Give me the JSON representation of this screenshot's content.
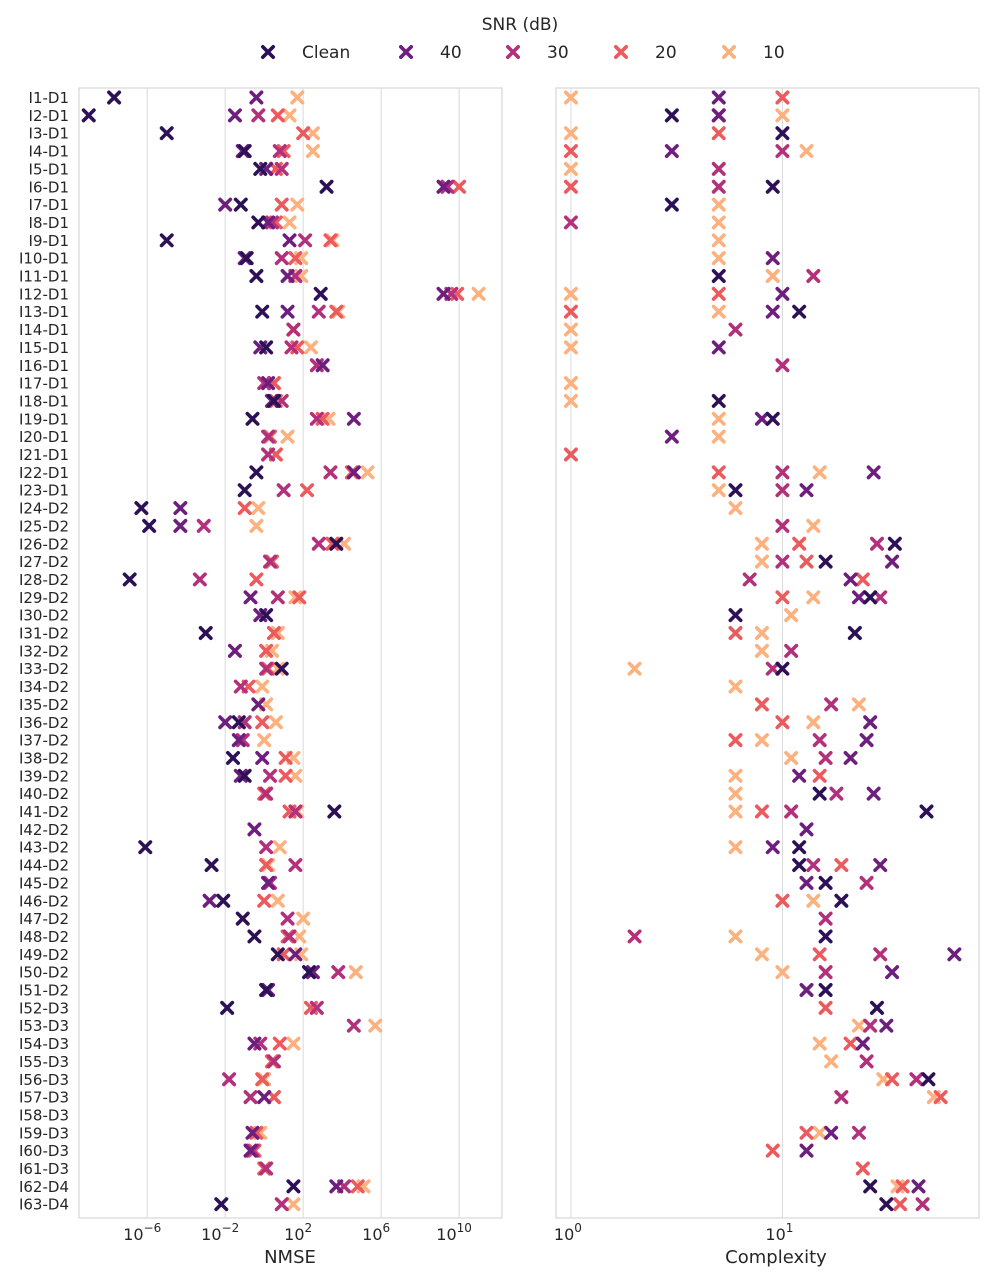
{
  "legend": {
    "title": "SNR (dB)",
    "entries": [
      {
        "label": "Clean",
        "color": "#2c1157"
      },
      {
        "label": "40",
        "color": "#6e1f7e"
      },
      {
        "label": "30",
        "color": "#b3307b"
      },
      {
        "label": "20",
        "color": "#ec5a5e"
      },
      {
        "label": "10",
        "color": "#fcb17e"
      }
    ]
  },
  "chart_data": {
    "type": "scatter",
    "categories": [
      "I1-D1",
      "I2-D1",
      "I3-D1",
      "I4-D1",
      "I5-D1",
      "I6-D1",
      "I7-D1",
      "I8-D1",
      "I9-D1",
      "I10-D1",
      "I11-D1",
      "I12-D1",
      "I13-D1",
      "I14-D1",
      "I15-D1",
      "I16-D1",
      "I17-D1",
      "I18-D1",
      "I19-D1",
      "I20-D1",
      "I21-D1",
      "I22-D1",
      "I23-D1",
      "I24-D2",
      "I25-D2",
      "I26-D2",
      "I27-D2",
      "I28-D2",
      "I29-D2",
      "I30-D2",
      "I31-D2",
      "I32-D2",
      "I33-D2",
      "I34-D2",
      "I35-D2",
      "I36-D2",
      "I37-D2",
      "I38-D2",
      "I39-D2",
      "I40-D2",
      "I41-D2",
      "I42-D2",
      "I43-D2",
      "I44-D2",
      "I45-D2",
      "I46-D2",
      "I47-D2",
      "I48-D2",
      "I49-D2",
      "I50-D2",
      "I51-D2",
      "I52-D3",
      "I53-D3",
      "I54-D3",
      "I55-D3",
      "I56-D3",
      "I57-D3",
      "I58-D3",
      "I59-D3",
      "I60-D3",
      "I61-D3",
      "I62-D4",
      "I63-D4"
    ],
    "series_names": [
      "Clean",
      "40",
      "30",
      "20",
      "10"
    ],
    "panels": [
      {
        "xlabel": "NMSE",
        "xscale": "log10",
        "xlim_exp": [
          -9.5,
          12.2
        ],
        "ticks": [
          {
            "exp": -6,
            "label": "10"
          },
          {
            "exp": -2,
            "label": "10"
          },
          {
            "exp": 2,
            "label": "10"
          },
          {
            "exp": 6,
            "label": "10"
          },
          {
            "exp": 10,
            "label": "10"
          }
        ],
        "tick_exponents": [
          "−6",
          "−2",
          "2",
          "6",
          "10"
        ],
        "log10_values": [
          [
            -7.7,
            -0.4,
            null,
            null,
            1.7
          ],
          [
            -9.0,
            -1.5,
            -0.3,
            0.7,
            1.3
          ],
          [
            -5.0,
            null,
            null,
            2.0,
            2.5
          ],
          [
            -1.0,
            -1.1,
            0.8,
            1.0,
            2.5
          ],
          [
            -0.2,
            0.1,
            0.9,
            0.6,
            0.6
          ],
          [
            3.2,
            9.2,
            9.4,
            10.0,
            null
          ],
          [
            -1.2,
            -2.0,
            null,
            0.9,
            1.7
          ],
          [
            -0.3,
            0.2,
            0.4,
            0.6,
            1.3
          ],
          [
            -5.0,
            1.3,
            2.1,
            3.4,
            3.5
          ],
          [
            -0.9,
            -1.0,
            0.9,
            1.6,
            1.9
          ],
          [
            -0.4,
            1.2,
            1.6,
            1.6,
            1.9
          ],
          [
            2.9,
            9.2,
            9.6,
            9.9,
            11.0
          ],
          [
            -0.1,
            1.2,
            2.8,
            3.7,
            3.8
          ],
          [
            null,
            null,
            1.5,
            1.5,
            1.5
          ],
          [
            0.1,
            -0.2,
            1.4,
            1.7,
            2.4
          ],
          [
            null,
            3.0,
            2.7,
            null,
            null
          ],
          [
            null,
            0.2,
            0.0,
            0.5,
            0.5
          ],
          [
            0.5,
            0.4,
            0.9,
            0.6,
            0.4
          ],
          [
            -0.6,
            4.6,
            2.7,
            3.0,
            3.3
          ],
          [
            null,
            null,
            0.2,
            0.3,
            1.2
          ],
          [
            null,
            null,
            0.2,
            0.6,
            0.6
          ],
          [
            -0.4,
            4.6,
            3.4,
            4.5,
            5.3
          ],
          [
            -1.0,
            null,
            1.0,
            2.2,
            null
          ],
          [
            -6.3,
            -4.3,
            null,
            -1.0,
            -0.3
          ],
          [
            -5.9,
            -4.3,
            -3.1,
            null,
            -0.4
          ],
          [
            3.7,
            null,
            2.8,
            3.5,
            4.1
          ],
          [
            null,
            null,
            0.3,
            0.4,
            0.4
          ],
          [
            -6.9,
            null,
            -3.3,
            -0.4,
            null
          ],
          [
            null,
            -0.7,
            0.7,
            1.8,
            1.6
          ],
          [
            0.1,
            -0.2,
            null,
            null,
            null
          ],
          [
            -3.0,
            null,
            null,
            0.5,
            0.7
          ],
          [
            null,
            -1.5,
            null,
            0.1,
            0.4
          ],
          [
            0.9,
            null,
            0.1,
            0.2,
            0.7
          ],
          [
            null,
            null,
            -1.2,
            -0.8,
            -0.1
          ],
          [
            null,
            -0.3,
            null,
            null,
            0.1
          ],
          [
            -1.3,
            -2.0,
            -1.0,
            -0.1,
            0.6
          ],
          [
            null,
            -1.3,
            -1.1,
            null,
            0.0
          ],
          [
            -1.6,
            -0.1,
            null,
            1.1,
            1.5
          ],
          [
            -1.0,
            -1.2,
            0.3,
            1.1,
            1.6
          ],
          [
            null,
            null,
            0.1,
            0.0,
            0.1
          ],
          [
            3.6,
            null,
            1.6,
            1.3,
            1.7
          ],
          [
            null,
            -0.5,
            null,
            null,
            null
          ],
          [
            -6.1,
            null,
            0.1,
            null,
            0.8
          ],
          [
            -2.7,
            null,
            1.6,
            0.1,
            0.2
          ],
          [
            null,
            0.2,
            0.3,
            null,
            null
          ],
          [
            -2.1,
            -2.8,
            null,
            0.0,
            0.7
          ],
          [
            -1.1,
            null,
            1.2,
            null,
            2.0
          ],
          [
            -0.5,
            null,
            1.3,
            1.2,
            1.8
          ],
          [
            0.7,
            1.6,
            null,
            1.0,
            1.9
          ],
          [
            2.3,
            2.5,
            3.8,
            null,
            4.7
          ],
          [
            0.1,
            0.2,
            null,
            null,
            null
          ],
          [
            -1.9,
            null,
            2.7,
            2.4,
            null
          ],
          [
            null,
            null,
            4.6,
            null,
            5.7
          ],
          [
            null,
            -0.5,
            -0.2,
            0.8,
            1.5
          ],
          [
            null,
            null,
            0.5,
            0.4,
            0.4
          ],
          [
            null,
            null,
            -1.8,
            -0.1,
            0.0
          ],
          [
            null,
            0.0,
            -0.7,
            0.5,
            0.5
          ],
          [
            null,
            null,
            null,
            null,
            null
          ],
          [
            null,
            -0.6,
            null,
            -0.4,
            -0.2
          ],
          [
            null,
            -0.7,
            -0.6,
            -0.5,
            null
          ],
          [
            null,
            null,
            0.1,
            0.0,
            null
          ],
          [
            1.5,
            3.7,
            4.1,
            4.8,
            5.1
          ],
          [
            -2.2,
            null,
            0.9,
            null,
            1.5
          ]
        ]
      },
      {
        "xlabel": "Complexity",
        "xscale": "log10",
        "xlim": [
          0.85,
          85
        ],
        "ticks": [
          {
            "value": 1,
            "label": "10",
            "exp": "0"
          },
          {
            "value": 10,
            "label": "10",
            "exp": "1"
          }
        ],
        "values": [
          [
            null,
            5,
            null,
            10,
            1
          ],
          [
            3,
            5,
            5,
            null,
            10
          ],
          [
            10,
            null,
            null,
            5,
            1
          ],
          [
            null,
            3,
            10,
            1,
            13
          ],
          [
            null,
            null,
            5,
            null,
            1
          ],
          [
            9,
            null,
            5,
            1,
            null
          ],
          [
            3,
            null,
            null,
            null,
            5
          ],
          [
            null,
            null,
            1,
            null,
            5
          ],
          [
            null,
            null,
            null,
            null,
            5
          ],
          [
            null,
            9,
            null,
            null,
            5
          ],
          [
            5,
            null,
            14,
            null,
            9
          ],
          [
            null,
            10,
            null,
            5,
            1
          ],
          [
            12,
            9,
            null,
            1,
            5
          ],
          [
            null,
            null,
            6,
            null,
            1
          ],
          [
            null,
            5,
            null,
            null,
            1
          ],
          [
            null,
            null,
            10,
            null,
            null
          ],
          [
            null,
            null,
            null,
            null,
            1
          ],
          [
            5,
            null,
            null,
            null,
            1
          ],
          [
            9,
            8,
            null,
            null,
            5
          ],
          [
            null,
            3,
            null,
            null,
            5
          ],
          [
            null,
            null,
            null,
            1,
            null
          ],
          [
            null,
            27,
            10,
            5,
            15
          ],
          [
            6,
            13,
            10,
            null,
            5
          ],
          [
            null,
            null,
            null,
            null,
            6
          ],
          [
            null,
            null,
            10,
            null,
            14
          ],
          [
            34,
            null,
            28,
            12,
            8
          ],
          [
            16,
            33,
            10,
            13,
            8
          ],
          [
            null,
            21,
            7,
            24,
            null
          ],
          [
            26,
            23,
            29,
            10,
            14
          ],
          [
            6,
            null,
            null,
            null,
            11
          ],
          [
            22,
            null,
            null,
            6,
            8
          ],
          [
            null,
            null,
            11,
            null,
            8
          ],
          [
            10,
            null,
            9,
            null,
            2
          ],
          [
            null,
            null,
            null,
            null,
            6
          ],
          [
            null,
            null,
            17,
            8,
            23
          ],
          [
            null,
            26,
            null,
            10,
            14
          ],
          [
            null,
            25,
            15,
            6,
            8
          ],
          [
            null,
            21,
            16,
            null,
            11
          ],
          [
            null,
            12,
            null,
            15,
            6
          ],
          [
            15,
            27,
            18,
            null,
            6
          ],
          [
            48,
            null,
            11,
            8,
            6
          ],
          [
            null,
            13,
            null,
            null,
            null
          ],
          [
            12,
            9,
            null,
            null,
            6
          ],
          [
            12,
            29,
            14,
            19,
            null
          ],
          [
            16,
            13,
            25,
            null,
            null
          ],
          [
            19,
            null,
            null,
            10,
            14
          ],
          [
            null,
            null,
            16,
            null,
            null
          ],
          [
            16,
            null,
            2,
            null,
            6
          ],
          [
            null,
            65,
            29,
            15,
            8
          ],
          [
            null,
            33,
            16,
            null,
            10
          ],
          [
            16,
            13,
            null,
            null,
            null
          ],
          [
            28,
            null,
            null,
            16,
            null
          ],
          [
            null,
            31,
            26,
            null,
            23
          ],
          [
            null,
            24,
            null,
            21,
            15
          ],
          [
            null,
            null,
            25,
            null,
            17
          ],
          [
            49,
            null,
            43,
            33,
            30
          ],
          [
            null,
            null,
            19,
            56,
            52
          ],
          [
            null,
            null,
            null,
            null,
            null
          ],
          [
            null,
            17,
            23,
            13,
            15
          ],
          [
            null,
            13,
            null,
            9,
            null
          ],
          [
            null,
            null,
            null,
            24,
            null
          ],
          [
            26,
            44,
            null,
            37,
            35
          ],
          [
            31,
            null,
            46,
            36,
            null
          ]
        ]
      }
    ]
  }
}
